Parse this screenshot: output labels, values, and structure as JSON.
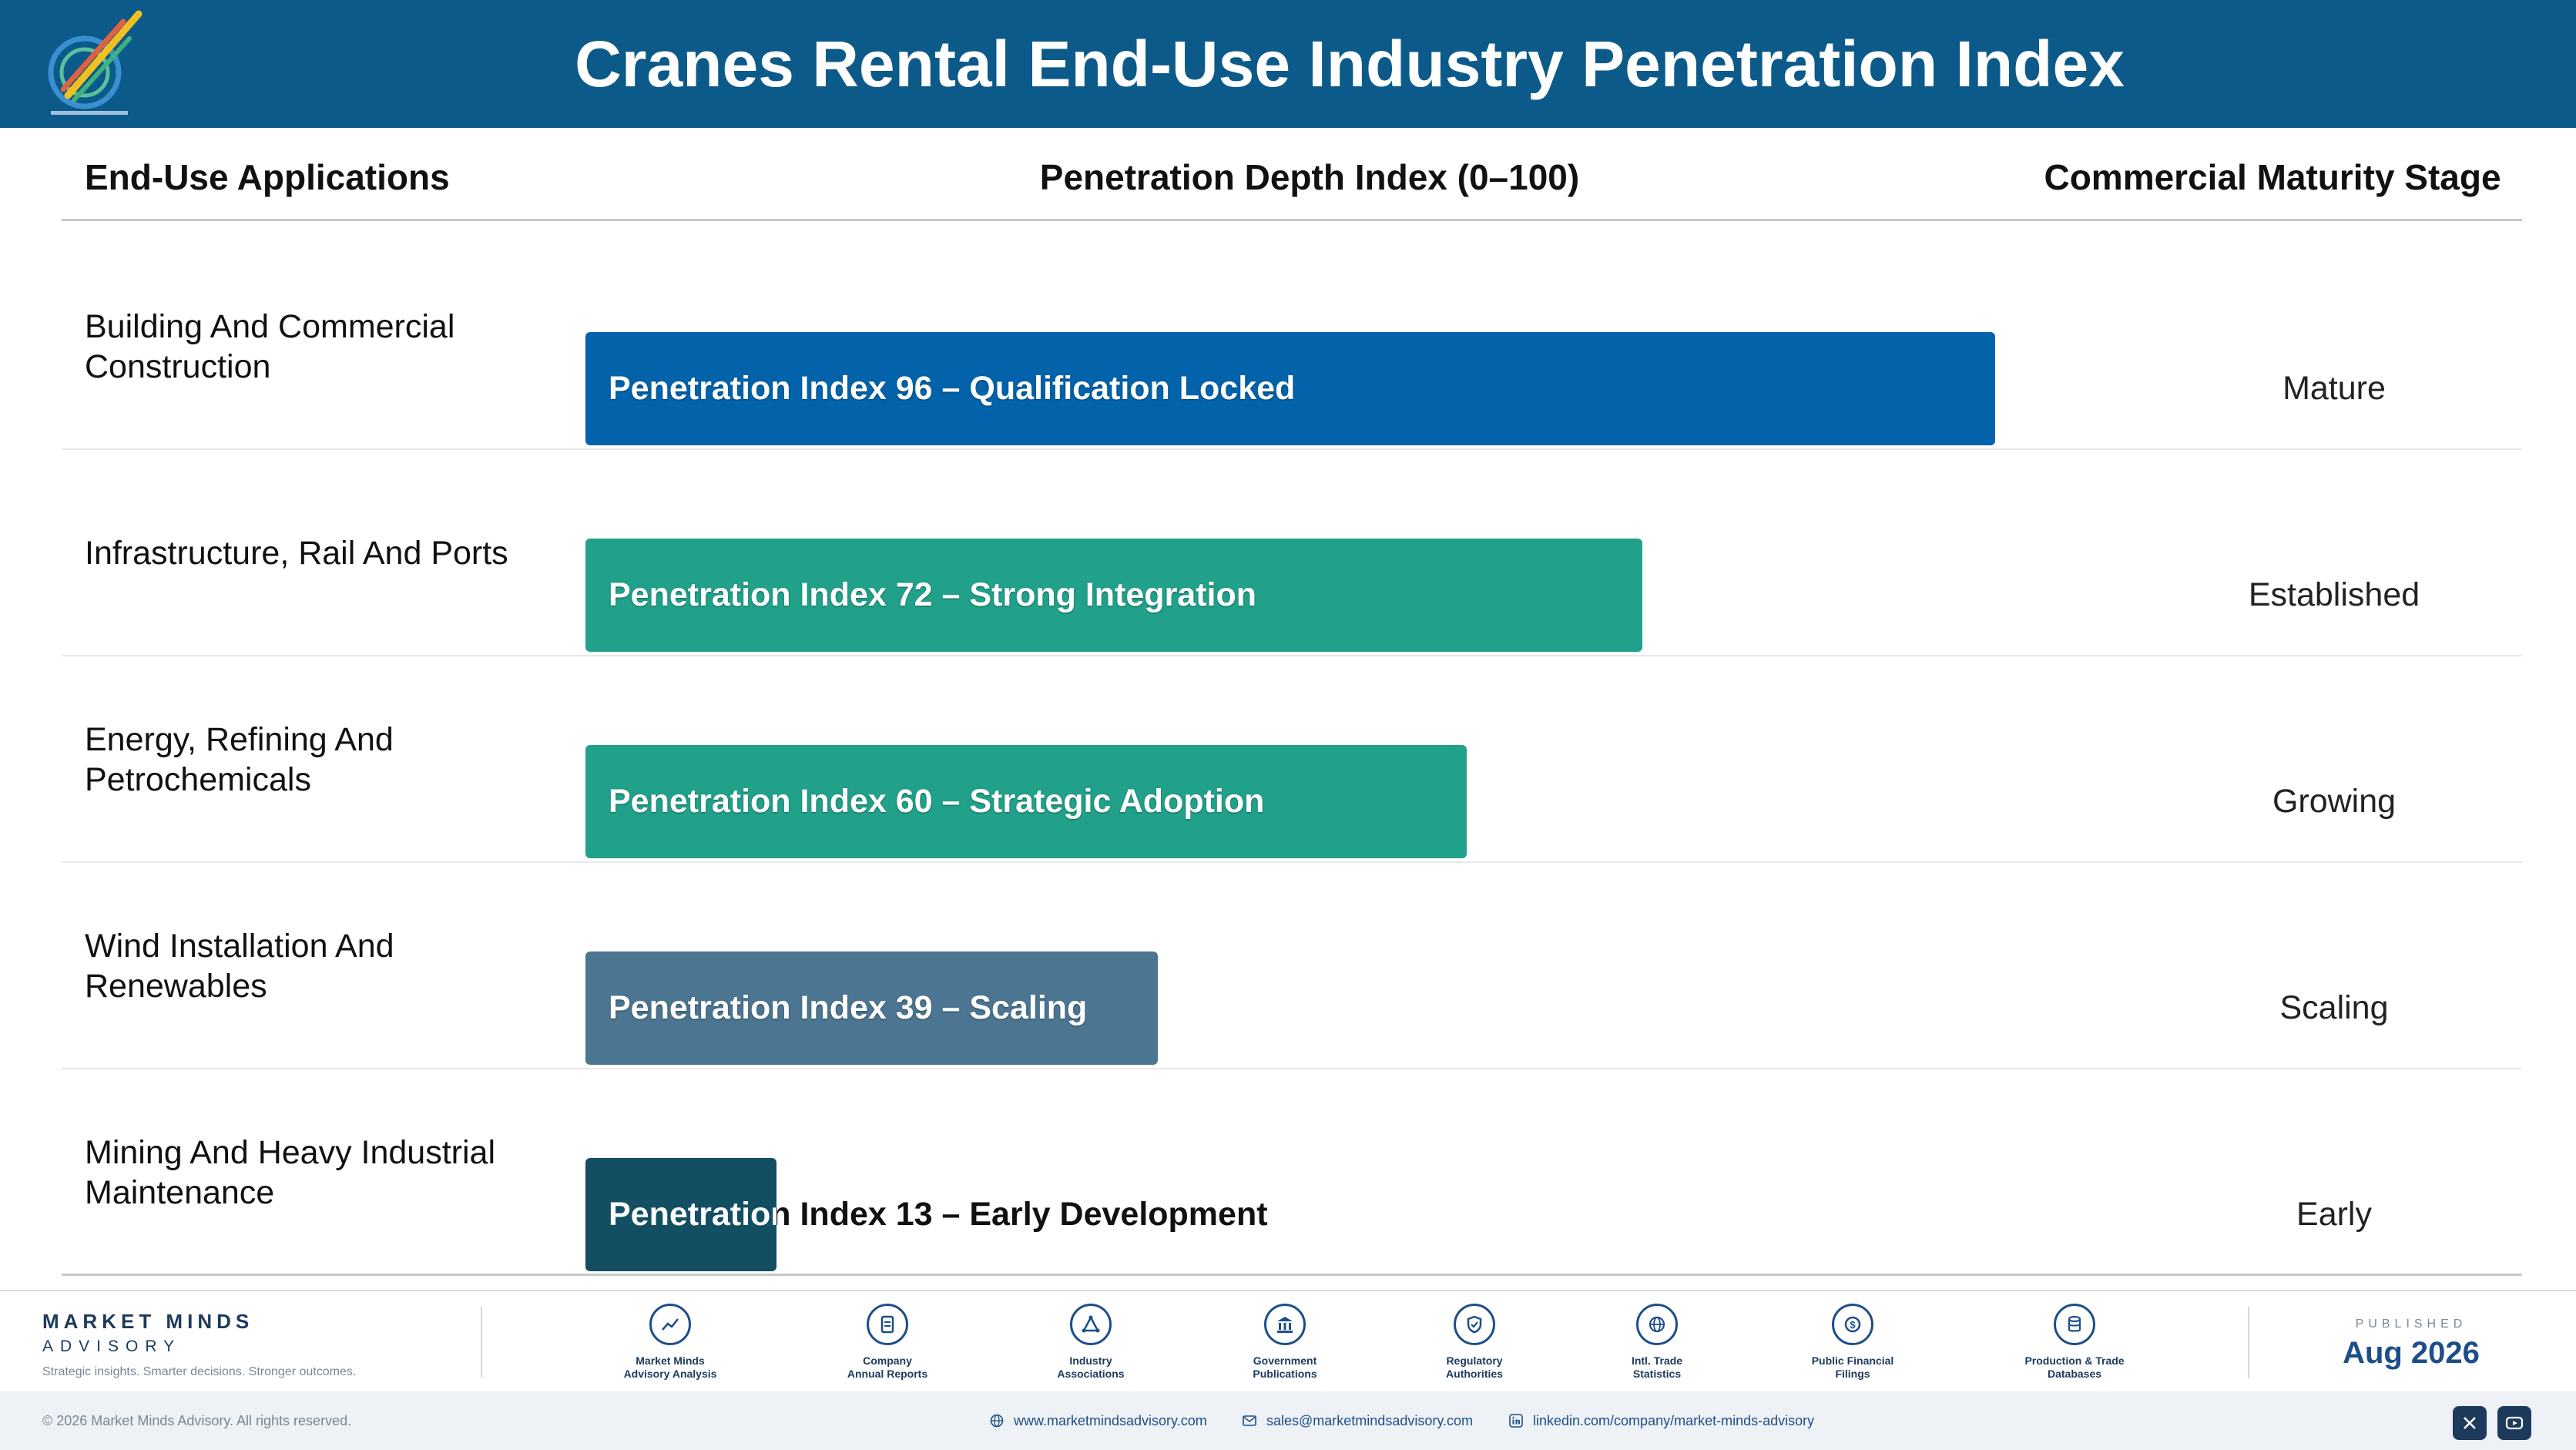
{
  "header": {
    "title": "Cranes Rental End-Use Industry Penetration Index"
  },
  "columns": {
    "applications": "End-Use Applications",
    "index": "Penetration Depth Index (0–100)",
    "stage": "Commercial Maturity Stage"
  },
  "chart_data": {
    "type": "bar",
    "orientation": "horizontal",
    "xlim": [
      0,
      100
    ],
    "categories": [
      "Building And Commercial Construction",
      "Infrastructure, Rail And Ports",
      "Energy, Refining And Petrochemicals",
      "Wind Installation And Renewables",
      "Mining And Heavy Industrial Maintenance"
    ],
    "values": [
      96,
      72,
      60,
      39,
      13
    ],
    "bar_labels": [
      "Penetration Index 96 – Qualification Locked",
      "Penetration Index 72 – Strong Integration",
      "Penetration Index 60 – Strategic Adoption",
      "Penetration Index 39 – Scaling",
      "Penetration Index 13 – Early Development"
    ],
    "stages": [
      "Mature",
      "Established",
      "Growing",
      "Scaling",
      "Early"
    ],
    "colors": [
      "#0263aa",
      "#21a08a",
      "#21a08a",
      "#4b7590",
      "#134f63"
    ]
  },
  "footer": {
    "brand_name": "MARKET MINDS",
    "brand_sub": "ADVISORY",
    "tagline": "Strategic insights. Smarter decisions. Stronger outcomes.",
    "sources": [
      {
        "label1": "Market Minds",
        "label2": "Advisory Analysis",
        "icon": "trend-line-icon"
      },
      {
        "label1": "Company",
        "label2": "Annual Reports",
        "icon": "document-icon"
      },
      {
        "label1": "Industry",
        "label2": "Associations",
        "icon": "network-icon"
      },
      {
        "label1": "Government",
        "label2": "Publications",
        "icon": "government-building-icon"
      },
      {
        "label1": "Regulatory",
        "label2": "Authorities",
        "icon": "shield-check-icon"
      },
      {
        "label1": "Intl. Trade",
        "label2": "Statistics",
        "icon": "globe-icon"
      },
      {
        "label1": "Public Financial",
        "label2": "Filings",
        "icon": "coin-icon"
      },
      {
        "label1": "Production & Trade",
        "label2": "Databases",
        "icon": "database-icon"
      }
    ],
    "published_label": "PUBLISHED",
    "published_date": "Aug 2026",
    "copyright": "© 2026 Market Minds Advisory. All rights reserved.",
    "website": "www.marketmindsadvisory.com",
    "email": "sales@marketmindsadvisory.com",
    "linkedin": "linkedin.com/company/market-minds-advisory"
  }
}
